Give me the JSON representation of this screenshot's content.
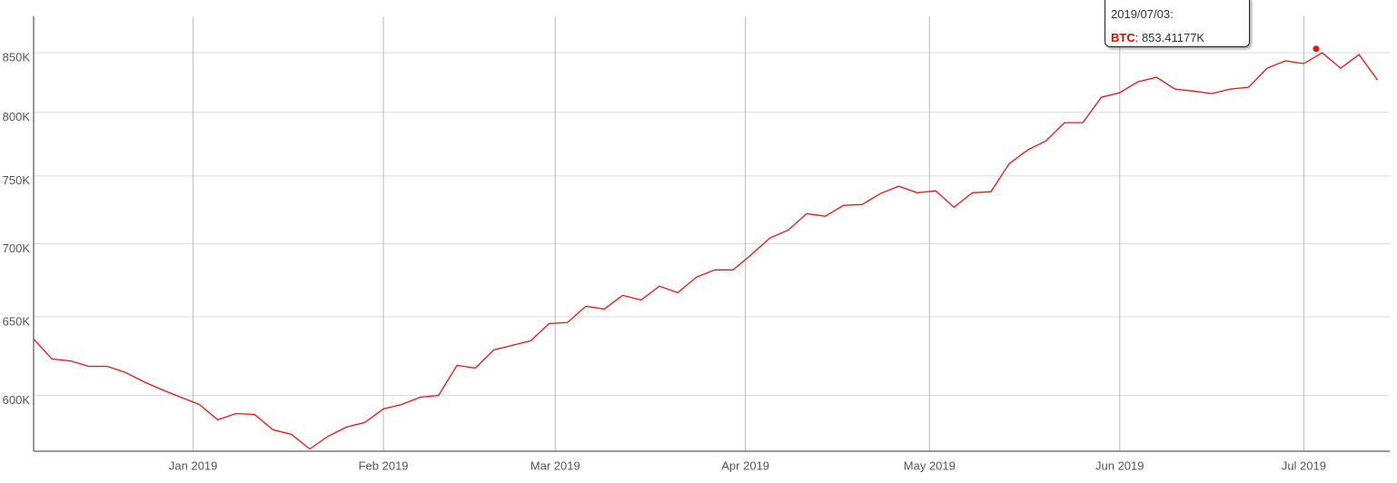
{
  "chart_data": {
    "type": "line",
    "log_scale": true,
    "grid": true,
    "x": [
      "2018/12/06",
      "2018/12/09",
      "2018/12/12",
      "2018/12/15",
      "2018/12/18",
      "2018/12/21",
      "2018/12/24",
      "2018/12/27",
      "2018/12/30",
      "2019/01/02",
      "2019/01/05",
      "2019/01/08",
      "2019/01/11",
      "2019/01/14",
      "2019/01/17",
      "2019/01/20",
      "2019/01/23",
      "2019/01/26",
      "2019/01/29",
      "2019/02/01",
      "2019/02/04",
      "2019/02/07",
      "2019/02/10",
      "2019/02/13",
      "2019/02/16",
      "2019/02/19",
      "2019/02/22",
      "2019/02/25",
      "2019/02/28",
      "2019/03/03",
      "2019/03/06",
      "2019/03/09",
      "2019/03/12",
      "2019/03/15",
      "2019/03/18",
      "2019/03/21",
      "2019/03/24",
      "2019/03/27",
      "2019/03/30",
      "2019/04/02",
      "2019/04/05",
      "2019/04/08",
      "2019/04/11",
      "2019/04/14",
      "2019/04/17",
      "2019/04/20",
      "2019/04/23",
      "2019/04/26",
      "2019/04/29",
      "2019/05/02",
      "2019/05/05",
      "2019/05/08",
      "2019/05/11",
      "2019/05/14",
      "2019/05/17",
      "2019/05/20",
      "2019/05/23",
      "2019/05/26",
      "2019/05/29",
      "2019/06/01",
      "2019/06/04",
      "2019/06/07",
      "2019/06/10",
      "2019/06/13",
      "2019/06/16",
      "2019/06/19",
      "2019/06/22",
      "2019/06/25",
      "2019/06/28",
      "2019/07/01",
      "2019/07/04",
      "2019/07/07",
      "2019/07/10",
      "2019/07/13"
    ],
    "series": [
      {
        "name": "BTC",
        "color": "#ee1111",
        "values": [
          635500,
          622700,
          621500,
          618100,
          618100,
          614200,
          608400,
          603400,
          599000,
          594600,
          585400,
          589100,
          588600,
          579500,
          576800,
          568300,
          575700,
          581100,
          583800,
          591900,
          594600,
          599000,
          600100,
          618700,
          617000,
          628500,
          631400,
          634300,
          645500,
          646200,
          657000,
          655100,
          664300,
          661200,
          670500,
          666100,
          676700,
          681700,
          681700,
          692500,
          704100,
          709900,
          721800,
          719900,
          727900,
          728500,
          736700,
          742200,
          737300,
          738700,
          726500,
          737300,
          738000,
          759400,
          770000,
          777200,
          791700,
          791700,
          812400,
          816200,
          825300,
          829100,
          819200,
          817500,
          815400,
          819200,
          820700,
          836700,
          843000,
          840700,
          850000,
          836700,
          848400,
          826800
        ]
      }
    ],
    "xlim": [
      "2018/12/06",
      "2019/07/15"
    ],
    "xticks": [
      {
        "value": "2019/01/01",
        "label": "Jan 2019"
      },
      {
        "value": "2019/02/01",
        "label": "Feb 2019"
      },
      {
        "value": "2019/03/01",
        "label": "Mar 2019"
      },
      {
        "value": "2019/04/01",
        "label": "Apr 2019"
      },
      {
        "value": "2019/05/01",
        "label": "May 2019"
      },
      {
        "value": "2019/06/01",
        "label": "Jun 2019"
      },
      {
        "value": "2019/07/01",
        "label": "Jul 2019"
      }
    ],
    "ylim": [
      567000,
      882000
    ],
    "yticks": [
      {
        "value": 600000,
        "label": "600K"
      },
      {
        "value": 650000,
        "label": "650K"
      },
      {
        "value": 700000,
        "label": "700K"
      },
      {
        "value": 750000,
        "label": "750K"
      },
      {
        "value": 800000,
        "label": "800K"
      },
      {
        "value": 850000,
        "label": "850K"
      }
    ],
    "tooltip": {
      "x": "2019/07/03",
      "value": 853411.77,
      "title": "2019/07/03:",
      "value_label": ": 853.41177K"
    }
  }
}
